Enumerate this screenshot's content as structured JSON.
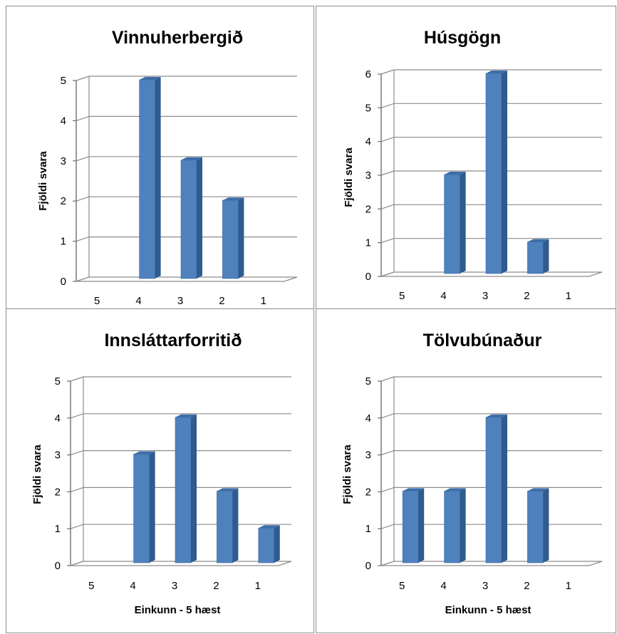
{
  "chart_data": [
    {
      "type": "bar",
      "title": "Vinnuherbergið",
      "categories": [
        "5",
        "4",
        "3",
        "2",
        "1"
      ],
      "values": [
        0,
        5,
        3,
        2,
        0
      ],
      "xlabel": "",
      "ylabel": "Fjöldi svara",
      "ylim": [
        0,
        5
      ],
      "yticks": [
        "0",
        "1",
        "2",
        "3",
        "4",
        "5"
      ],
      "grid": true,
      "color": "#4f81bd"
    },
    {
      "type": "bar",
      "title": "Húsgögn",
      "categories": [
        "5",
        "4",
        "3",
        "2",
        "1"
      ],
      "values": [
        0,
        3,
        6,
        1,
        0
      ],
      "xlabel": "",
      "ylabel": "Fjöldi svara",
      "ylim": [
        0,
        6
      ],
      "yticks": [
        "0",
        "1",
        "2",
        "3",
        "4",
        "5",
        "6"
      ],
      "grid": true,
      "color": "#4f81bd"
    },
    {
      "type": "bar",
      "title": "Innsláttarforritið",
      "categories": [
        "5",
        "4",
        "3",
        "2",
        "1"
      ],
      "values": [
        0,
        3,
        4,
        2,
        1
      ],
      "xlabel": "Einkunn - 5 hæst",
      "ylabel": "Fjöldi svara",
      "ylim": [
        0,
        5
      ],
      "yticks": [
        "0",
        "1",
        "2",
        "3",
        "4",
        "5"
      ],
      "grid": true,
      "color": "#4f81bd"
    },
    {
      "type": "bar",
      "title": "Tölvubúnaður",
      "categories": [
        "5",
        "4",
        "3",
        "2",
        "1"
      ],
      "values": [
        2,
        2,
        4,
        2,
        0
      ],
      "xlabel": "Einkunn - 5 hæst",
      "ylabel": "Fjöldi svara",
      "ylim": [
        0,
        5
      ],
      "yticks": [
        "0",
        "1",
        "2",
        "3",
        "4",
        "5"
      ],
      "grid": true,
      "color": "#4f81bd"
    }
  ]
}
